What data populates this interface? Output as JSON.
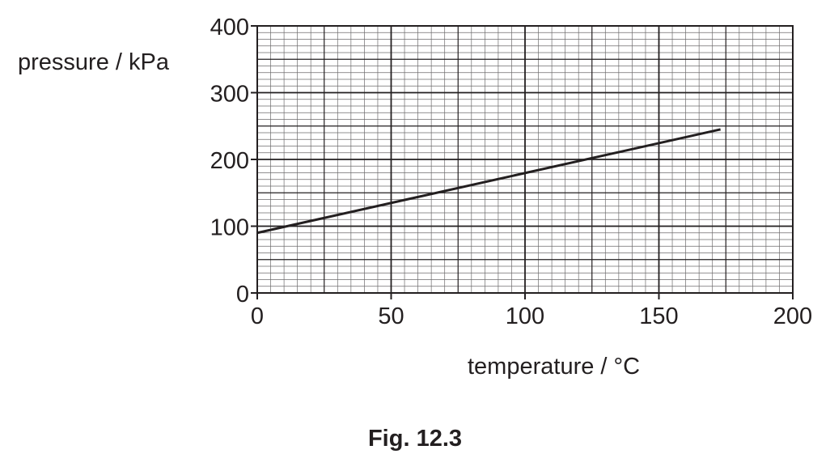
{
  "figure_caption": "Fig. 12.3",
  "chart_data": {
    "type": "line",
    "xlabel": "temperature / °C",
    "ylabel": "pressure / kPa",
    "xlim": [
      0,
      200
    ],
    "ylim": [
      0,
      400
    ],
    "xticks": [
      "0",
      "50",
      "100",
      "150",
      "200"
    ],
    "yticks": [
      "0",
      "100",
      "200",
      "300",
      "400"
    ],
    "grid": true,
    "series": [
      {
        "x": [
          0,
          173
        ],
        "y": [
          90,
          245
        ]
      }
    ]
  }
}
